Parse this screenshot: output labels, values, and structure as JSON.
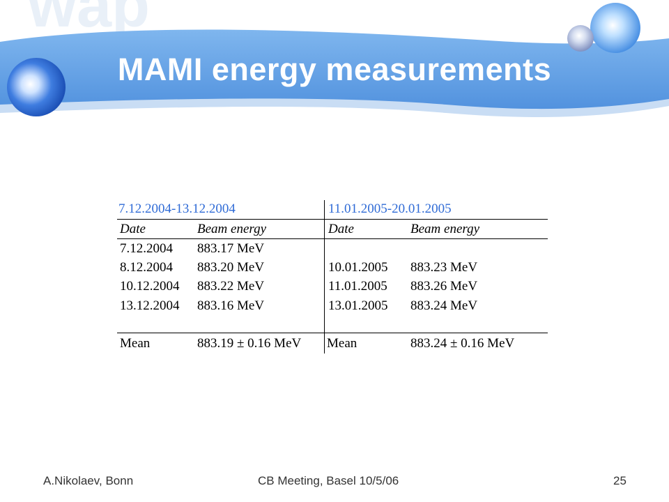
{
  "slide": {
    "title": "MAMI energy measurements",
    "footer_left": "A.Nikolaev, Bonn",
    "footer_center": "CB Meeting, Basel 10/5/06",
    "page_number": "25"
  },
  "table": {
    "left_period": "7.12.2004-13.12.2004",
    "right_period": "11.01.2005-20.01.2005",
    "col_date": "Date",
    "col_energy": "Beam energy",
    "left_rows": [
      {
        "date": "7.12.2004",
        "energy": "883.17 MeV"
      },
      {
        "date": "8.12.2004",
        "energy": "883.20 MeV"
      },
      {
        "date": "10.12.2004",
        "energy": "883.22 MeV"
      },
      {
        "date": "13.12.2004",
        "energy": "883.16 MeV"
      }
    ],
    "right_rows": [
      {
        "date": "10.01.2005",
        "energy": "883.23 MeV"
      },
      {
        "date": "11.01.2005",
        "energy": "883.26 MeV"
      },
      {
        "date": "13.01.2005",
        "energy": "883.24 MeV"
      }
    ],
    "mean_label": "Mean",
    "left_mean": "883.19 ± 0.16 MeV",
    "right_mean": "883.24 ± 0.16 MeV"
  },
  "colors": {
    "banner_blue": "#5b9fe6",
    "header_blue": "#2f6bd6"
  }
}
